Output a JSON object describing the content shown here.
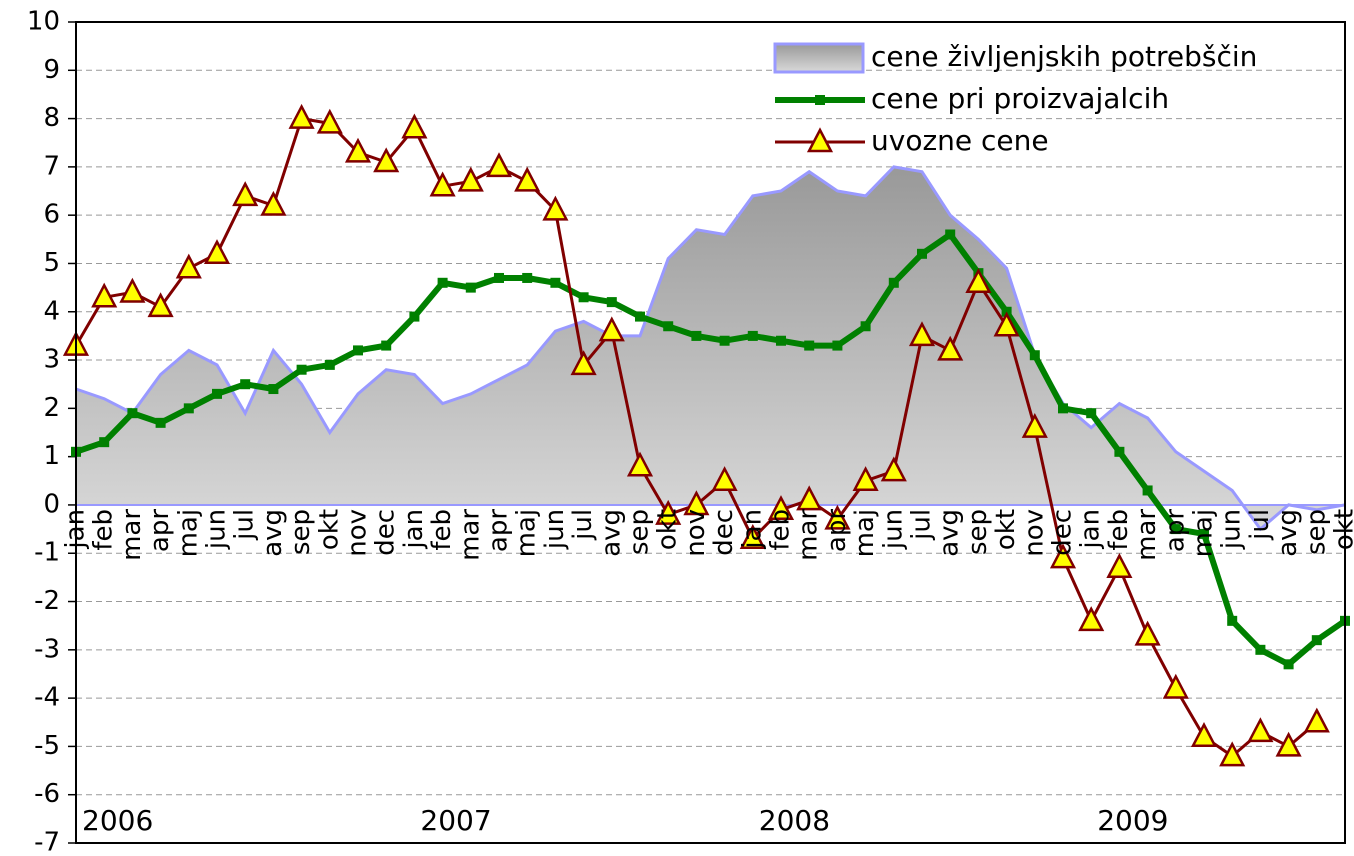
{
  "chart_data": {
    "type": "line",
    "categories": [
      "jan",
      "feb",
      "mar",
      "apr",
      "maj",
      "jun",
      "jul",
      "avg",
      "sep",
      "okt",
      "nov",
      "dec",
      "jan",
      "feb",
      "mar",
      "apr",
      "maj",
      "jun",
      "jul",
      "avg",
      "sep",
      "okt",
      "nov",
      "dec",
      "jan",
      "feb",
      "mar",
      "apr",
      "maj",
      "jun",
      "jul",
      "avg",
      "sep",
      "okt",
      "nov",
      "dec",
      "jan",
      "feb",
      "mar",
      "apr",
      "maj",
      "jun",
      "jul",
      "avg",
      "sep",
      "okt"
    ],
    "years": [
      "2006",
      "2007",
      "2008",
      "2009"
    ],
    "series": [
      {
        "name": "cene življenjskih potrebščin",
        "kind": "area",
        "color": "#9999ff",
        "values": [
          2.4,
          2.2,
          1.9,
          2.7,
          3.2,
          2.9,
          1.9,
          3.2,
          2.5,
          1.5,
          2.3,
          2.8,
          2.7,
          2.1,
          2.3,
          2.6,
          2.9,
          3.6,
          3.8,
          3.5,
          3.5,
          5.1,
          5.7,
          5.6,
          6.4,
          6.5,
          6.9,
          6.5,
          6.4,
          7.0,
          6.9,
          6.0,
          5.5,
          4.9,
          3.1,
          2.1,
          1.6,
          2.1,
          1.8,
          1.1,
          0.7,
          0.3,
          -0.5,
          0.0,
          -0.1,
          0.0
        ]
      },
      {
        "name": "cene pri proizvajalcih",
        "kind": "line",
        "marker": "square",
        "color": "#008000",
        "values": [
          1.1,
          1.3,
          1.9,
          1.7,
          2.0,
          2.3,
          2.5,
          2.4,
          2.8,
          2.9,
          3.2,
          3.3,
          3.9,
          4.6,
          4.5,
          4.7,
          4.7,
          4.6,
          4.3,
          4.2,
          3.9,
          3.7,
          3.5,
          3.4,
          3.5,
          3.4,
          3.3,
          3.3,
          3.7,
          4.6,
          5.2,
          5.6,
          4.8,
          4.0,
          3.1,
          2.0,
          1.9,
          1.1,
          0.3,
          -0.5,
          -0.6,
          -2.4,
          -3.0,
          -3.3,
          -2.8,
          -2.4
        ]
      },
      {
        "name": "uvozne cene",
        "kind": "line",
        "marker": "triangle",
        "color": "#800000",
        "marker_color": "#ffff00",
        "values": [
          3.3,
          4.3,
          4.4,
          4.1,
          4.9,
          5.2,
          6.4,
          6.2,
          8.0,
          7.9,
          7.3,
          7.1,
          7.8,
          6.6,
          6.7,
          7.0,
          6.7,
          6.1,
          2.9,
          3.6,
          0.8,
          -0.2,
          0.0,
          0.5,
          -0.7,
          -0.1,
          0.1,
          -0.3,
          0.5,
          0.7,
          3.5,
          3.2,
          4.6,
          3.7,
          1.6,
          -1.1,
          -2.4,
          -1.3,
          -2.7,
          -3.8,
          -4.8,
          -5.2,
          -4.7,
          -5.0,
          -4.5,
          null
        ]
      }
    ],
    "ylim": [
      -7,
      10
    ],
    "yticks": [
      -7,
      -6,
      -5,
      -4,
      -3,
      -2,
      -1,
      0,
      1,
      2,
      3,
      4,
      5,
      6,
      7,
      8,
      9,
      10
    ],
    "grid": true,
    "legend": "top-right"
  }
}
